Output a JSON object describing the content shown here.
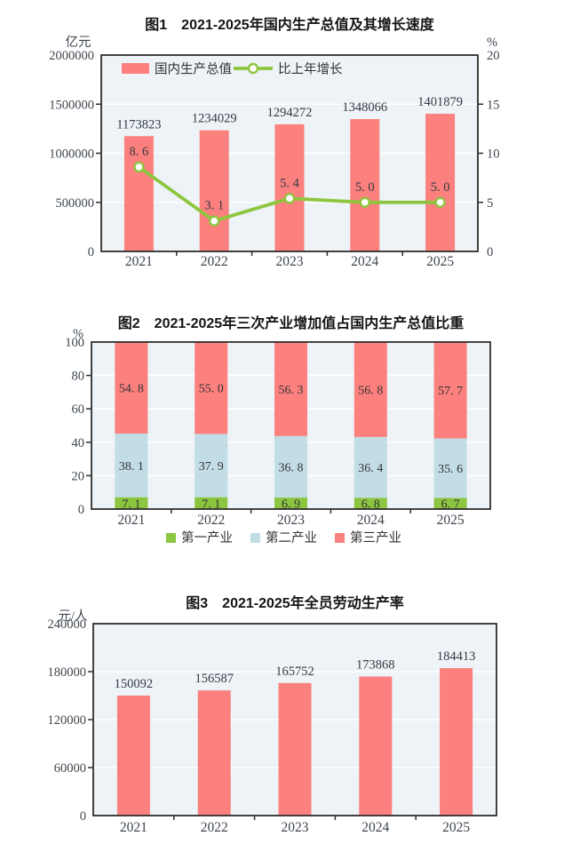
{
  "colors": {
    "plot_bg": "#EDF3F7",
    "grid": "#FFFFFF",
    "frame": "#2E2E2E",
    "bar_red": "#FB807E",
    "line_green": "#8DC63E",
    "industry_green": "#8CC540",
    "industry_blue": "#C3DDE7",
    "industry_red": "#FB807E"
  },
  "chart_data": [
    {
      "id": "chart1",
      "type": "bar+line",
      "title": "图1　2021-2025年国内生产总值及其增长速度",
      "categories": [
        "2021",
        "2022",
        "2023",
        "2024",
        "2025"
      ],
      "left_axis": {
        "unit": "亿元",
        "min": 0,
        "max": 2000000,
        "ticks": [
          0,
          500000,
          1000000,
          1500000,
          2000000
        ]
      },
      "right_axis": {
        "unit": "%",
        "min": 0,
        "max": 20,
        "ticks": [
          0,
          5,
          10,
          15,
          20
        ]
      },
      "series": [
        {
          "name": "国内生产总值",
          "type": "bar",
          "axis": "left",
          "values": [
            1173823,
            1234029,
            1294272,
            1348066,
            1401879
          ],
          "labels": [
            "1173823",
            "1234029",
            "1294272",
            "1348066",
            "1401879"
          ],
          "color": "#FB807E"
        },
        {
          "name": "比上年增长",
          "type": "line",
          "axis": "right",
          "values": [
            8.6,
            3.1,
            5.4,
            5.0,
            5.0
          ],
          "labels": [
            "8. 6",
            "3. 1",
            "5. 4",
            "5. 0",
            "5. 0"
          ],
          "color": "#8DC63E"
        }
      ],
      "legend_position": "top-left-inside",
      "grid": true
    },
    {
      "id": "chart2",
      "type": "stacked-bar-100",
      "title": "图2　2021-2025年三次产业增加值占国内生产总值比重",
      "categories": [
        "2021",
        "2022",
        "2023",
        "2024",
        "2025"
      ],
      "left_axis": {
        "unit": "%",
        "min": 0,
        "max": 100,
        "ticks": [
          0,
          20,
          40,
          60,
          80,
          100
        ]
      },
      "series": [
        {
          "name": "第一产业",
          "values": [
            7.1,
            7.1,
            6.9,
            6.8,
            6.7
          ],
          "labels": [
            "7. 1",
            "7. 1",
            "6. 9",
            "6. 8",
            "6. 7"
          ],
          "color": "#8CC540"
        },
        {
          "name": "第二产业",
          "values": [
            38.1,
            37.9,
            36.8,
            36.4,
            35.6
          ],
          "labels": [
            "38. 1",
            "37. 9",
            "36. 8",
            "36. 4",
            "35. 6"
          ],
          "color": "#C3DDE7"
        },
        {
          "name": "第三产业",
          "values": [
            54.8,
            55.0,
            56.3,
            56.8,
            57.7
          ],
          "labels": [
            "54. 8",
            "55. 0",
            "56. 3",
            "56. 8",
            "57. 7"
          ],
          "color": "#FB807E"
        }
      ],
      "legend_position": "bottom",
      "grid": true
    },
    {
      "id": "chart3",
      "type": "bar",
      "title": "图3　2021-2025年全员劳动生产率",
      "categories": [
        "2021",
        "2022",
        "2023",
        "2024",
        "2025"
      ],
      "left_axis": {
        "unit": "元/人",
        "min": 0,
        "max": 240000,
        "ticks": [
          0,
          60000,
          120000,
          180000,
          240000
        ]
      },
      "series": [
        {
          "name": "全员劳动生产率",
          "type": "bar",
          "axis": "left",
          "values": [
            150092,
            156587,
            165752,
            173868,
            184413
          ],
          "labels": [
            "150092",
            "156587",
            "165752",
            "173868",
            "184413"
          ],
          "color": "#FB807E"
        }
      ],
      "legend_position": "none",
      "grid": true
    }
  ]
}
